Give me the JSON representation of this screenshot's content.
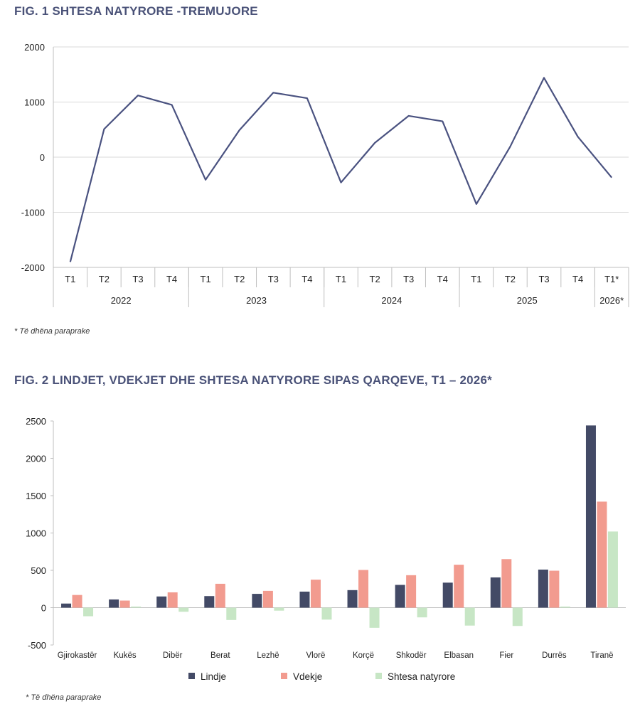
{
  "fig1": {
    "title": "FIG. 1 SHTESA NATYRORE -TREMUJORE",
    "note": "* Të dhëna paraprake",
    "chart_data": {
      "type": "line",
      "title": "FIG. 1 SHTESA NATYRORE -TREMUJORE",
      "quarters": [
        "T1",
        "T2",
        "T3",
        "T4",
        "T1",
        "T2",
        "T3",
        "T4",
        "T1",
        "T2",
        "T3",
        "T4",
        "T1",
        "T2",
        "T3",
        "T4",
        "T1*"
      ],
      "years": [
        {
          "label": "2022",
          "count": 4
        },
        {
          "label": "2023",
          "count": 4
        },
        {
          "label": "2024",
          "count": 4
        },
        {
          "label": "2025",
          "count": 4
        },
        {
          "label": "2026*",
          "count": 1
        }
      ],
      "series": [
        {
          "values": [
            -1900,
            510,
            1120,
            950,
            -410,
            490,
            1170,
            1070,
            -460,
            260,
            750,
            650,
            -850,
            190,
            1440,
            370,
            -370
          ],
          "color": "#4a5280"
        }
      ],
      "ylim": [
        -2000,
        2000
      ],
      "yticks": [
        -2000,
        -1000,
        0,
        1000,
        2000
      ],
      "grid": true,
      "legend": "none"
    }
  },
  "fig2": {
    "title": "FIG. 2 LINDJET, VDEKJET DHE SHTESA NATYRORE SIPAS QARQEVE, T1 – 2026*",
    "note": "* Të dhëna paraprake",
    "chart_data": {
      "type": "bar",
      "title": "FIG. 2 LINDJET, VDEKJET DHE SHTESA NATYRORE SIPAS QARQEVE, T1 – 2026*",
      "categories": [
        "Gjirokastër",
        "Kukës",
        "Dibër",
        "Berat",
        "Lezhë",
        "Vlorë",
        "Korçë",
        "Shkodër",
        "Elbasan",
        "Fier",
        "Durrës",
        "Tiranë"
      ],
      "series": [
        {
          "name": "Lindje",
          "values": [
            55,
            110,
            150,
            155,
            185,
            215,
            235,
            305,
            335,
            405,
            510,
            2440
          ],
          "color": "#434a66"
        },
        {
          "name": "Vdekje",
          "values": [
            170,
            95,
            205,
            320,
            225,
            375,
            505,
            435,
            575,
            650,
            495,
            1420
          ],
          "color": "#f29b8f"
        },
        {
          "name": "Shtesa natyrore",
          "values": [
            -115,
            15,
            -55,
            -165,
            -40,
            -160,
            -270,
            -130,
            -240,
            -245,
            15,
            1020
          ],
          "color": "#c7e6c5"
        }
      ],
      "ylim": [
        -500,
        2500
      ],
      "yticks": [
        -500,
        0,
        500,
        1000,
        1500,
        2000,
        2500
      ],
      "grid": false,
      "legend": "bottom"
    }
  }
}
